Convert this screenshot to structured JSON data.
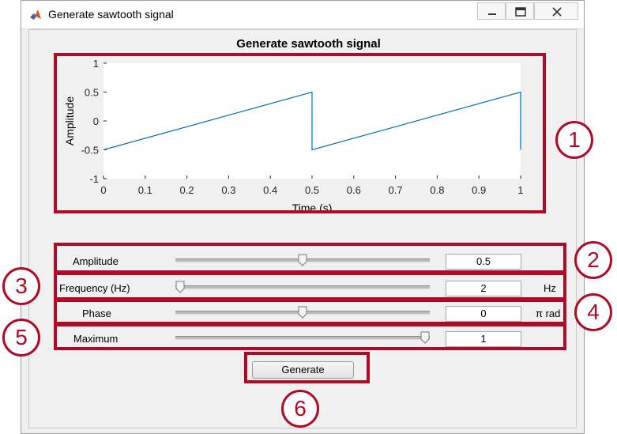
{
  "window": {
    "title": "Generate sawtooth signal"
  },
  "panel": {
    "title": "Generate sawtooth signal"
  },
  "chart_data": {
    "type": "line",
    "title": "",
    "xlabel": "Time (s)",
    "ylabel": "Amplitude",
    "xlim": [
      0,
      1
    ],
    "ylim": [
      -1,
      1
    ],
    "xticks": [
      0,
      0.1,
      0.2,
      0.3,
      0.4,
      0.5,
      0.6,
      0.7,
      0.8,
      0.9,
      1
    ],
    "xtick_labels": [
      "0",
      "0.1",
      "0.2",
      "0.3",
      "0.4",
      "0.5",
      "0.6",
      "0.7",
      "0.8",
      "0.9",
      "1"
    ],
    "yticks": [
      -1,
      -0.5,
      0,
      0.5,
      1
    ],
    "ytick_labels": [
      "-1",
      "-0.5",
      "0",
      "0.5",
      "1"
    ],
    "grid": false,
    "series": [
      {
        "color": "#0072bd",
        "x": [
          0,
          0.5,
          0.5,
          1,
          1
        ],
        "y": [
          -0.5,
          0.5,
          -0.5,
          0.5,
          -0.5
        ]
      }
    ]
  },
  "controls": {
    "amplitude": {
      "label": "Amplitude",
      "value": "0.5",
      "slider_fraction": 0.5,
      "unit": ""
    },
    "frequency": {
      "label": "Frequency (Hz)",
      "value": "2",
      "slider_fraction": 0.0,
      "unit": "Hz"
    },
    "phase": {
      "label": "Phase",
      "value": "0",
      "slider_fraction": 0.5,
      "unit": "π rad"
    },
    "maximum": {
      "label": "Maximum",
      "value": "1",
      "slider_fraction": 1.0,
      "unit": ""
    }
  },
  "generate_button": {
    "label": "Generate"
  },
  "callouts": [
    "1",
    "2",
    "3",
    "4",
    "5",
    "6"
  ],
  "colors": {
    "callout": "#b00a26",
    "line": "#0072bd"
  }
}
